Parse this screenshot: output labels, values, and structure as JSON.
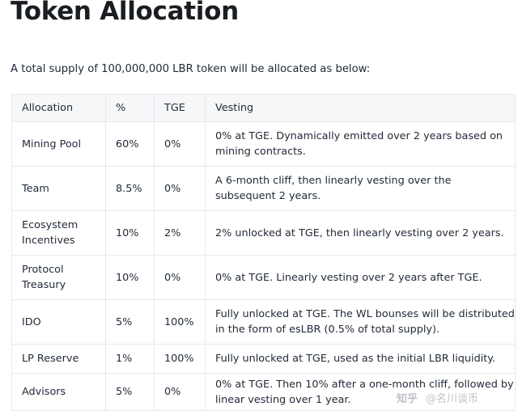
{
  "title": "Token Allocation",
  "intro": "A total supply of 100,000,000 LBR token will be allocated as below:",
  "table": {
    "headers": [
      "Allocation",
      "%",
      "TGE",
      "Vesting"
    ],
    "rows": [
      [
        "Mining Pool",
        "60%",
        "0%",
        "0% at TGE. Dynamically emitted over 2 years based on mining contracts."
      ],
      [
        "Team",
        "8.5%",
        "0%",
        "A 6-month cliff, then linearly vesting over the subsequent 2 years."
      ],
      [
        "Ecosystem Incentives",
        "10%",
        "2%",
        "2% unlocked at TGE, then linearly vesting over 2 years."
      ],
      [
        "Protocol Treasury",
        "10%",
        "0%",
        "0% at TGE. Linearly vesting over 2 years after TGE."
      ],
      [
        "IDO",
        "5%",
        "100%",
        "Fully unlocked at TGE. The WL bounses will be distributed in the form of esLBR (0.5% of total supply)."
      ],
      [
        "LP Reserve",
        "1%",
        "100%",
        "Fully unlocked at TGE, used as the initial LBR liquidity."
      ],
      [
        "Advisors",
        "5%",
        "0%",
        "0% at TGE. Then 10% after a one-month cliff, followed by linear vesting over 1 year."
      ]
    ]
  },
  "watermark": {
    "logo": "知乎",
    "text": "@名川谈币"
  }
}
